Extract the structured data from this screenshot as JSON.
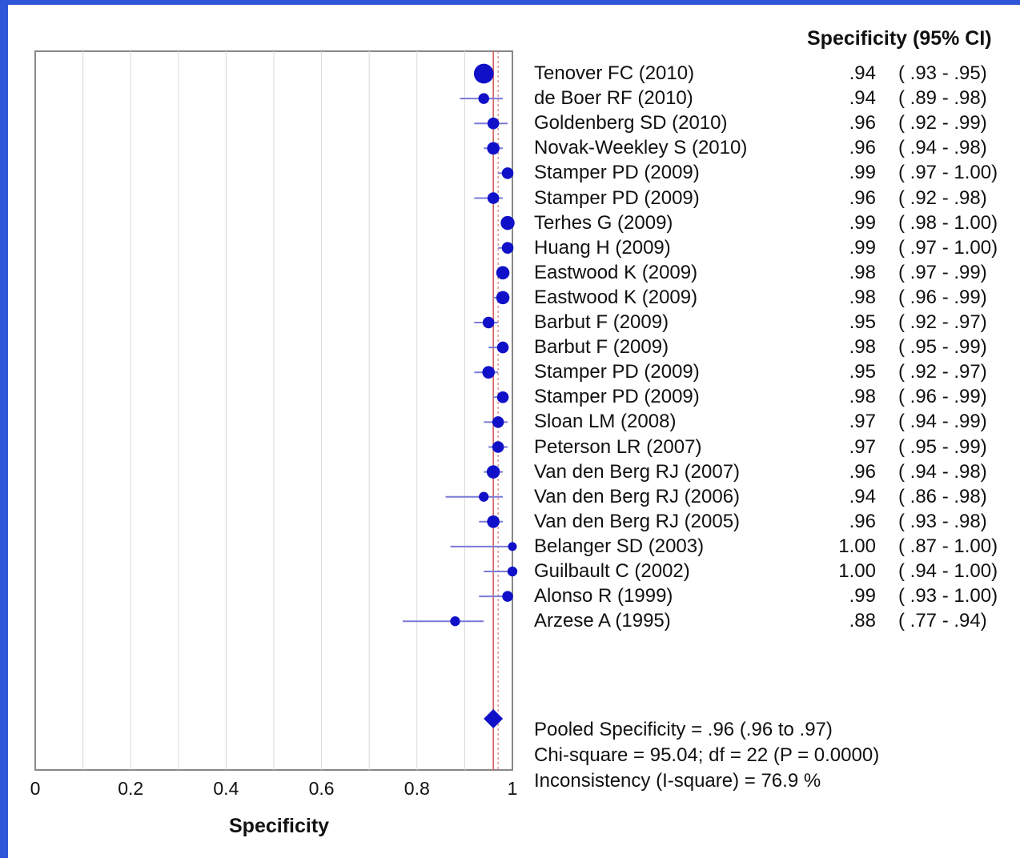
{
  "chart_data": {
    "type": "forest",
    "xlabel": "Specificity",
    "xlim": [
      0,
      1
    ],
    "xticks": [
      "0",
      "0.2",
      "0.4",
      "0.6",
      "0.8",
      "1"
    ],
    "column_header": "Specificity (95% CI)",
    "studies": [
      {
        "name": "Tenover FC (2010)",
        "value": 0.94,
        "lo": 0.93,
        "hi": 0.95,
        "weight": 10,
        "spec_text": ".94",
        "ci_text": "( .93 -  .95)"
      },
      {
        "name": "de Boer RF (2010)",
        "value": 0.94,
        "lo": 0.89,
        "hi": 0.98,
        "weight": 3,
        "spec_text": ".94",
        "ci_text": "( .89 -  .98)"
      },
      {
        "name": "Goldenberg SD (2010)",
        "value": 0.96,
        "lo": 0.92,
        "hi": 0.99,
        "weight": 3.5,
        "spec_text": ".96",
        "ci_text": "( .92 -  .99)"
      },
      {
        "name": "Novak-Weekley S (2010)",
        "value": 0.96,
        "lo": 0.94,
        "hi": 0.98,
        "weight": 4,
        "spec_text": ".96",
        "ci_text": "( .94 -  .98)"
      },
      {
        "name": "Stamper PD (2009)",
        "value": 0.99,
        "lo": 0.97,
        "hi": 1.0,
        "weight": 3.5,
        "spec_text": ".99",
        "ci_text": "( .97 - 1.00)"
      },
      {
        "name": "Stamper PD (2009)",
        "value": 0.96,
        "lo": 0.92,
        "hi": 0.98,
        "weight": 3.5,
        "spec_text": ".96",
        "ci_text": "( .92 -  .98)"
      },
      {
        "name": "Terhes G (2009)",
        "value": 0.99,
        "lo": 0.98,
        "hi": 1.0,
        "weight": 5,
        "spec_text": ".99",
        "ci_text": "( .98 - 1.00)"
      },
      {
        "name": "Huang H (2009)",
        "value": 0.99,
        "lo": 0.97,
        "hi": 1.0,
        "weight": 3.5,
        "spec_text": ".99",
        "ci_text": "( .97 - 1.00)"
      },
      {
        "name": "Eastwood K (2009)",
        "value": 0.98,
        "lo": 0.97,
        "hi": 0.99,
        "weight": 4.5,
        "spec_text": ".98",
        "ci_text": "( .97 -  .99)"
      },
      {
        "name": "Eastwood K (2009)",
        "value": 0.98,
        "lo": 0.96,
        "hi": 0.99,
        "weight": 4.5,
        "spec_text": ".98",
        "ci_text": "( .96 -  .99)"
      },
      {
        "name": "Barbut F (2009)",
        "value": 0.95,
        "lo": 0.92,
        "hi": 0.97,
        "weight": 3.5,
        "spec_text": ".95",
        "ci_text": "( .92 -  .97)"
      },
      {
        "name": "Barbut F (2009)",
        "value": 0.98,
        "lo": 0.95,
        "hi": 0.99,
        "weight": 3.5,
        "spec_text": ".98",
        "ci_text": "( .95 -  .99)"
      },
      {
        "name": "Stamper PD (2009)",
        "value": 0.95,
        "lo": 0.92,
        "hi": 0.97,
        "weight": 4,
        "spec_text": ".95",
        "ci_text": "( .92 -  .97)"
      },
      {
        "name": "Stamper PD (2009)",
        "value": 0.98,
        "lo": 0.96,
        "hi": 0.99,
        "weight": 3.5,
        "spec_text": ".98",
        "ci_text": "( .96 -  .99)"
      },
      {
        "name": "Sloan LM (2008)",
        "value": 0.97,
        "lo": 0.94,
        "hi": 0.99,
        "weight": 3.5,
        "spec_text": ".97",
        "ci_text": "( .94 -  .99)"
      },
      {
        "name": "Peterson LR  (2007)",
        "value": 0.97,
        "lo": 0.95,
        "hi": 0.99,
        "weight": 3.5,
        "spec_text": ".97",
        "ci_text": "( .95 -  .99)"
      },
      {
        "name": "Van den Berg RJ (2007)",
        "value": 0.96,
        "lo": 0.94,
        "hi": 0.98,
        "weight": 4.5,
        "spec_text": ".96",
        "ci_text": "( .94 -  .98)"
      },
      {
        "name": "Van den Berg  RJ (2006)",
        "value": 0.94,
        "lo": 0.86,
        "hi": 0.98,
        "weight": 2.5,
        "spec_text": ".94",
        "ci_text": "( .86 -  .98)"
      },
      {
        "name": "Van den Berg RJ (2005)",
        "value": 0.96,
        "lo": 0.93,
        "hi": 0.98,
        "weight": 4,
        "spec_text": ".96",
        "ci_text": "( .93 -  .98)"
      },
      {
        "name": "Belanger SD (2003)",
        "value": 1.0,
        "lo": 0.87,
        "hi": 1.0,
        "weight": 2,
        "spec_text": "1.00",
        "ci_text": "( .87 - 1.00)"
      },
      {
        "name": "Guilbault C (2002)",
        "value": 1.0,
        "lo": 0.94,
        "hi": 1.0,
        "weight": 2.5,
        "spec_text": "1.00",
        "ci_text": "( .94 - 1.00)"
      },
      {
        "name": "Alonso R (1999)",
        "value": 0.99,
        "lo": 0.93,
        "hi": 1.0,
        "weight": 3,
        "spec_text": ".99",
        "ci_text": "( .93 - 1.00)"
      },
      {
        "name": "Arzese A (1995)",
        "value": 0.88,
        "lo": 0.77,
        "hi": 0.94,
        "weight": 2.5,
        "spec_text": ".88",
        "ci_text": "( .77 -  .94)"
      }
    ],
    "pooled": {
      "value": 0.96,
      "lo": 0.96,
      "hi": 0.97
    },
    "stats": {
      "pooled_text": "Pooled Specificity = .96 (.96 to .97)",
      "chi_square_text": "Chi-square = 95.04; df =  22 (P = 0.0000)",
      "inconsistency_text": "Inconsistency (I-square) = 76.9 %"
    },
    "colors": {
      "marker": "#1010c8",
      "ci_line": "#7a7ad8",
      "pooled_line": "#d06060",
      "grid": "#d8d8d8",
      "frame": "#888888",
      "background": "#2f55d8"
    }
  }
}
